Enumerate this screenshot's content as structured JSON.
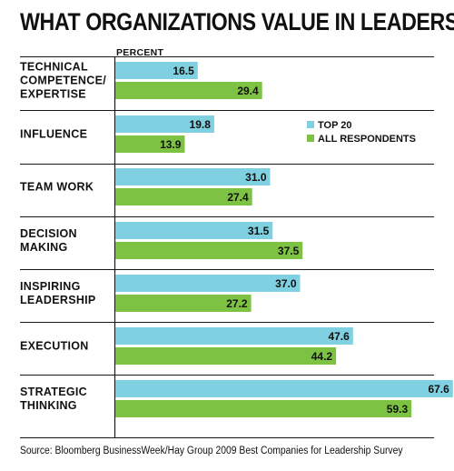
{
  "chart_data": {
    "type": "bar",
    "orientation": "horizontal",
    "title": "WHAT ORGANIZATIONS VALUE IN LEADERS",
    "unit_label": "PERCENT",
    "categories": [
      [
        "TECHNICAL",
        "COMPETENCE/",
        "EXPERTISE"
      ],
      [
        "INFLUENCE"
      ],
      [
        "TEAM WORK"
      ],
      [
        "DECISION",
        "MAKING"
      ],
      [
        "INSPIRING",
        "LEADERSHIP"
      ],
      [
        "EXECUTION"
      ],
      [
        "STRATEGIC",
        "THINKING"
      ]
    ],
    "series": [
      {
        "name": "TOP 20",
        "color": "#7fd0e0",
        "values": [
          16.5,
          19.8,
          31.0,
          31.5,
          37.0,
          47.6,
          67.6
        ]
      },
      {
        "name": "ALL RESPONDENTS",
        "color": "#7dc243",
        "values": [
          29.4,
          13.9,
          27.4,
          37.5,
          27.2,
          44.2,
          59.3
        ]
      }
    ],
    "xlim": [
      0,
      75
    ],
    "legend_position": "right",
    "gridlines": false,
    "source": "Source: Bloomberg BusinessWeek/Hay Group 2009 Best Companies for Leadership Survey"
  }
}
